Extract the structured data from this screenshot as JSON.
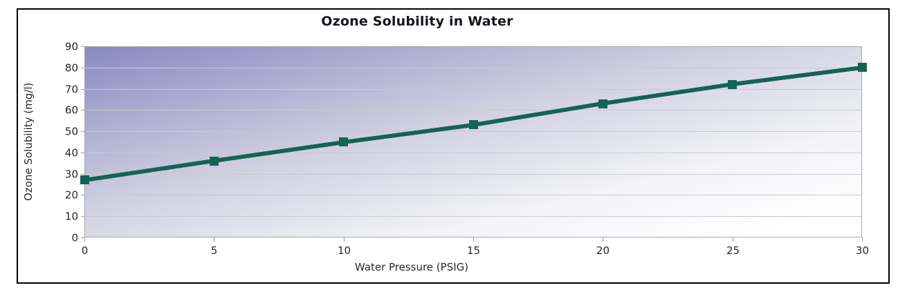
{
  "chart_data": {
    "type": "line",
    "title": "Ozone Solubility in Water",
    "xlabel": "Water Pressure (PSIG)",
    "ylabel": "Ozone Solubility (mg/l)",
    "x": [
      0,
      5,
      10,
      15,
      20,
      25,
      30
    ],
    "series": [
      {
        "name": "Ozone Solubility",
        "values": [
          27,
          36,
          45,
          53,
          63,
          72,
          80
        ],
        "color": "#156355",
        "marker": "square",
        "line_width": 6,
        "marker_size": 13
      }
    ],
    "xlim": [
      0,
      30
    ],
    "ylim": [
      0,
      90
    ],
    "x_ticks": [
      "0",
      "5",
      "10",
      "15",
      "20",
      "25",
      "30"
    ],
    "y_ticks": [
      "0",
      "10",
      "20",
      "30",
      "40",
      "50",
      "60",
      "70",
      "80",
      "90"
    ],
    "grid": "horizontal-only",
    "legend": "none",
    "plot_background": {
      "type": "diagonal-gradient",
      "from_color": "#8989c2",
      "mid_color": "#cfcfe0",
      "to_color": "#ffffff"
    },
    "gridline_color": "#c9c9cf",
    "axis_line_color": "#a6a6ae",
    "tick_color": "#9a9aa2",
    "tick_label_color": "#26262e",
    "title_color": "#15151d",
    "frame_border_color": "#000000"
  }
}
